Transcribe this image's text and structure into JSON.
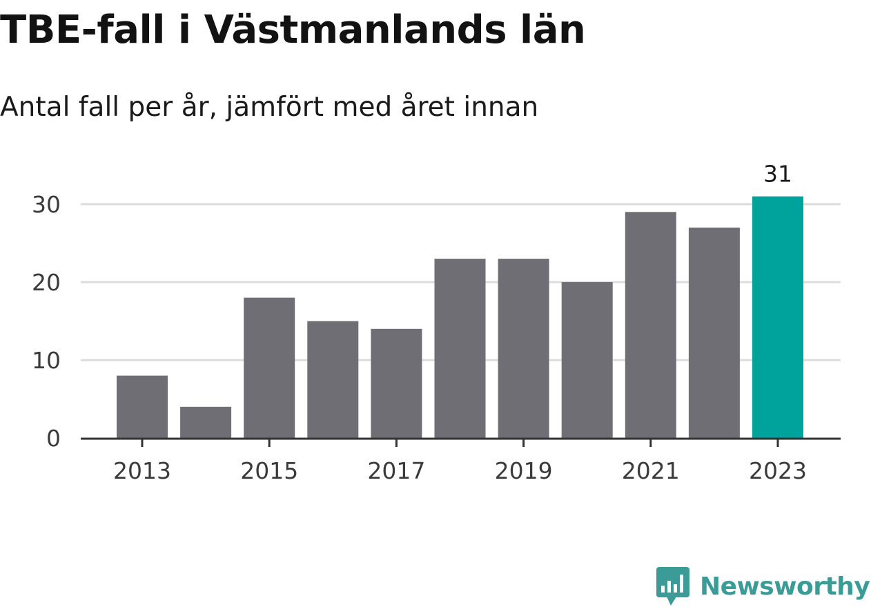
{
  "title": "TBE-fall i Västmanlands län",
  "subtitle": "Antal fall per år, jämfört med året innan",
  "brand": {
    "name": "Newsworthy",
    "color": "#3a9b97",
    "icon": "bar-chart-speech-bubble-icon"
  },
  "colors": {
    "bar": "#6f6e74",
    "highlight": "#00a39b",
    "grid": "#dcdcdc",
    "axis": "#333333"
  },
  "chart_data": {
    "type": "bar",
    "title": "TBE-fall i Västmanlands län",
    "subtitle": "Antal fall per år, jämfört med året innan",
    "categories": [
      "2013",
      "2014",
      "2015",
      "2016",
      "2017",
      "2018",
      "2019",
      "2020",
      "2021",
      "2022",
      "2023"
    ],
    "values": [
      8,
      4,
      18,
      15,
      14,
      23,
      23,
      20,
      29,
      27,
      31
    ],
    "x_tick_labels": [
      "2013",
      "2015",
      "2017",
      "2019",
      "2021",
      "2023"
    ],
    "y_ticks": [
      0,
      10,
      20,
      30
    ],
    "ylim": [
      0,
      30
    ],
    "grid": true,
    "highlight_index": 10,
    "data_labels": [
      {
        "index": 10,
        "text": "31"
      }
    ],
    "xlabel": "",
    "ylabel": ""
  }
}
